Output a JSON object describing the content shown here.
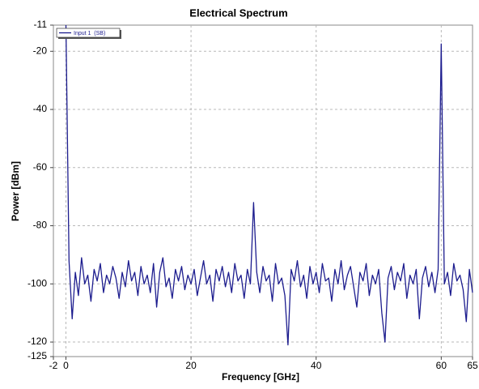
{
  "chart_data": {
    "type": "line",
    "title": "Electrical Spectrum",
    "xlabel": "Frequency [GHz]",
    "ylabel": "Power [dBm]",
    "xlim": [
      -2,
      65
    ],
    "xticks": [
      -2,
      0,
      20,
      40,
      60,
      65
    ],
    "ylim": [
      -125,
      -11
    ],
    "yticks": [
      -125,
      -120,
      -100,
      -80,
      -60,
      -40,
      -20,
      -11
    ],
    "grid": true,
    "legend": "upper left",
    "x": [
      0,
      0.5,
      1,
      1.5,
      2,
      2.5,
      3,
      3.5,
      4,
      4.5,
      5,
      5.5,
      6,
      6.5,
      7,
      7.5,
      8,
      8.5,
      9,
      9.5,
      10,
      10.5,
      11,
      11.5,
      12,
      12.5,
      13,
      13.5,
      14,
      14.5,
      15,
      15.5,
      16,
      16.5,
      17,
      17.5,
      18,
      18.5,
      19,
      19.5,
      20,
      20.5,
      21,
      21.5,
      22,
      22.5,
      23,
      23.5,
      24,
      24.5,
      25,
      25.5,
      26,
      26.5,
      27,
      27.5,
      28,
      28.5,
      29,
      29.5,
      30,
      30.5,
      31,
      31.5,
      32,
      32.5,
      33,
      33.5,
      34,
      34.5,
      35,
      35.5,
      36,
      36.5,
      37,
      37.5,
      38,
      38.5,
      39,
      39.5,
      40,
      40.5,
      41,
      41.5,
      42,
      42.5,
      43,
      43.5,
      44,
      44.5,
      45,
      45.5,
      46,
      46.5,
      47,
      47.5,
      48,
      48.5,
      49,
      49.5,
      50,
      50.5,
      51,
      51.5,
      52,
      52.5,
      53,
      53.5,
      54,
      54.5,
      55,
      55.5,
      56,
      56.5,
      57,
      57.5,
      58,
      58.5,
      59,
      59.5,
      60,
      60.5,
      61,
      61.5,
      62,
      62.5,
      63,
      63.5,
      64,
      64.5,
      65
    ],
    "series": [
      {
        "name": "Input 1  (SB)",
        "color": "#1c1c8e",
        "values": [
          -11,
          -92,
          -112,
          -96,
          -104,
          -91,
          -100,
          -97,
          -106,
          -95,
          -99,
          -93,
          -103,
          -97,
          -100,
          -94,
          -98,
          -105,
          -96,
          -101,
          -92,
          -99,
          -96,
          -104,
          -94,
          -100,
          -97,
          -103,
          -93,
          -108,
          -96,
          -91,
          -101,
          -98,
          -105,
          -95,
          -99,
          -94,
          -102,
          -97,
          -100,
          -95,
          -104,
          -98,
          -92,
          -100,
          -97,
          -106,
          -95,
          -99,
          -94,
          -101,
          -96,
          -103,
          -93,
          -99,
          -97,
          -105,
          -95,
          -100,
          -72,
          -96,
          -103,
          -94,
          -99,
          -97,
          -106,
          -93,
          -100,
          -98,
          -104,
          -121,
          -95,
          -99,
          -92,
          -101,
          -97,
          -105,
          -94,
          -100,
          -96,
          -103,
          -93,
          -99,
          -98,
          -106,
          -95,
          -100,
          -92,
          -102,
          -97,
          -94,
          -101,
          -108,
          -96,
          -99,
          -93,
          -104,
          -97,
          -100,
          -95,
          -110,
          -120,
          -98,
          -94,
          -102,
          -96,
          -99,
          -93,
          -105,
          -97,
          -100,
          -95,
          -112,
          -98,
          -94,
          -101,
          -96,
          -103,
          -95,
          -17.5,
          -100,
          -96,
          -104,
          -93,
          -99,
          -97,
          -102,
          -113,
          -95,
          -103
        ]
      }
    ]
  }
}
